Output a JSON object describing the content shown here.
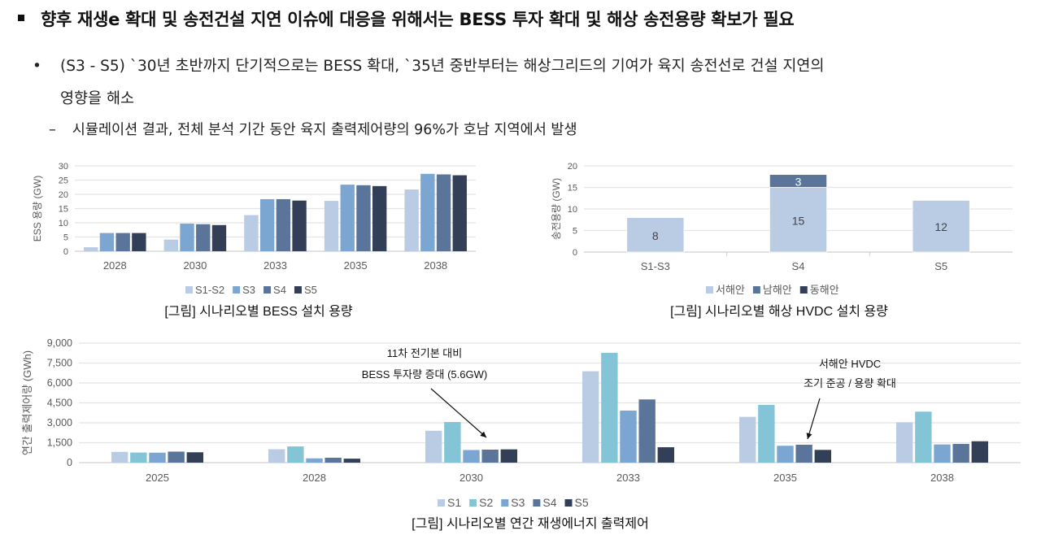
{
  "header": {
    "title": "향후 재생e 확대 및 송전건설 지연 이슈에 대응을 위해서는 BESS 투자 확대 및 해상 송전용량 확보가 필요",
    "bullet_line1": "(S3 - S5) `30년 초반까지 단기적으로는 BESS 확대, `35년 중반부터는 해상그리드의 기여가 육지 송전선로 건설 지연의",
    "bullet_line2": "영향을 해소",
    "sub_bullet": "시뮬레이션 결과, 전체 분석 기간 동안 육지 출력제어량의 96%가 호남 지역에서 발생",
    "bullet_marker": "•",
    "dash_marker": "–"
  },
  "chart_data": [
    {
      "type": "bar",
      "caption": "[그림] 시나리오별 BESS 설치 용량",
      "ylabel": "ESS 용량 (GW)",
      "ylim": [
        0,
        30
      ],
      "yticks": [
        0,
        5,
        10,
        15,
        20,
        25,
        30
      ],
      "grid": true,
      "legend": "bottom",
      "categories": [
        "2028",
        "2030",
        "2033",
        "2035",
        "2038"
      ],
      "series": [
        {
          "name": "S1-S2",
          "color": "#b9cce4",
          "values": [
            1.4,
            4.1,
            12.7,
            17.7,
            21.7
          ]
        },
        {
          "name": "S3",
          "color": "#7ba6d1",
          "values": [
            6.4,
            9.7,
            18.3,
            23.4,
            27.2
          ]
        },
        {
          "name": "S4",
          "color": "#5a7599",
          "values": [
            6.4,
            9.5,
            18.3,
            23.2,
            27.0
          ]
        },
        {
          "name": "S5",
          "color": "#333f57",
          "values": [
            6.4,
            9.2,
            17.8,
            22.9,
            26.7
          ]
        }
      ]
    },
    {
      "type": "stacked-bar",
      "caption": "[그림] 시나리오별 해상 HVDC 설치 용량",
      "ylabel": "송전용량 (GW)",
      "ylim": [
        0,
        20
      ],
      "yticks": [
        0,
        5,
        10,
        15,
        20
      ],
      "grid": true,
      "legend": "bottom",
      "categories": [
        "S1-S3",
        "S4",
        "S5"
      ],
      "series": [
        {
          "name": "서해안",
          "color": "#b9cce4",
          "values": [
            8,
            15,
            12
          ],
          "labels": [
            "8",
            "15",
            "12"
          ]
        },
        {
          "name": "남해안",
          "color": "#5a7599",
          "values": [
            0,
            3,
            0
          ],
          "labels": [
            "",
            "3",
            ""
          ]
        },
        {
          "name": "동해안",
          "color": "#333f57",
          "values": [
            0,
            0,
            0
          ],
          "labels": [
            "",
            "",
            ""
          ]
        }
      ]
    },
    {
      "type": "bar",
      "caption": "[그림] 시나리오별 연간 재생에너지 출력제어",
      "ylabel": "연간 출력제어량 (GWh)",
      "ylim": [
        0,
        9000
      ],
      "yticks": [
        "0",
        "1,500",
        "3,000",
        "4,500",
        "6,000",
        "7,500",
        "9,000"
      ],
      "grid": true,
      "legend": "bottom",
      "categories": [
        "2025",
        "2028",
        "2030",
        "2033",
        "2035",
        "2038"
      ],
      "series": [
        {
          "name": "S1",
          "color": "#b9cce4",
          "values": [
            810,
            1010,
            2400,
            6880,
            3450,
            3040
          ]
        },
        {
          "name": "S2",
          "color": "#83c5d6",
          "values": [
            760,
            1220,
            3060,
            8270,
            4350,
            3840
          ]
        },
        {
          "name": "S3",
          "color": "#7ba6d1",
          "values": [
            750,
            320,
            950,
            3920,
            1270,
            1370
          ]
        },
        {
          "name": "S4",
          "color": "#5a7599",
          "values": [
            830,
            370,
            980,
            4760,
            1350,
            1410
          ]
        },
        {
          "name": "S5",
          "color": "#333f57",
          "values": [
            780,
            300,
            1000,
            1160,
            960,
            1610
          ]
        }
      ],
      "annotations": [
        {
          "lines": [
            "11차 전기본 대비",
            "BESS 투자량 증대 (5.6GW)"
          ],
          "target": "2030 S3-S4"
        },
        {
          "lines": [
            "서해안 HVDC",
            "조기 준공 / 용량 확대"
          ],
          "target": "2035 S4"
        }
      ]
    }
  ]
}
